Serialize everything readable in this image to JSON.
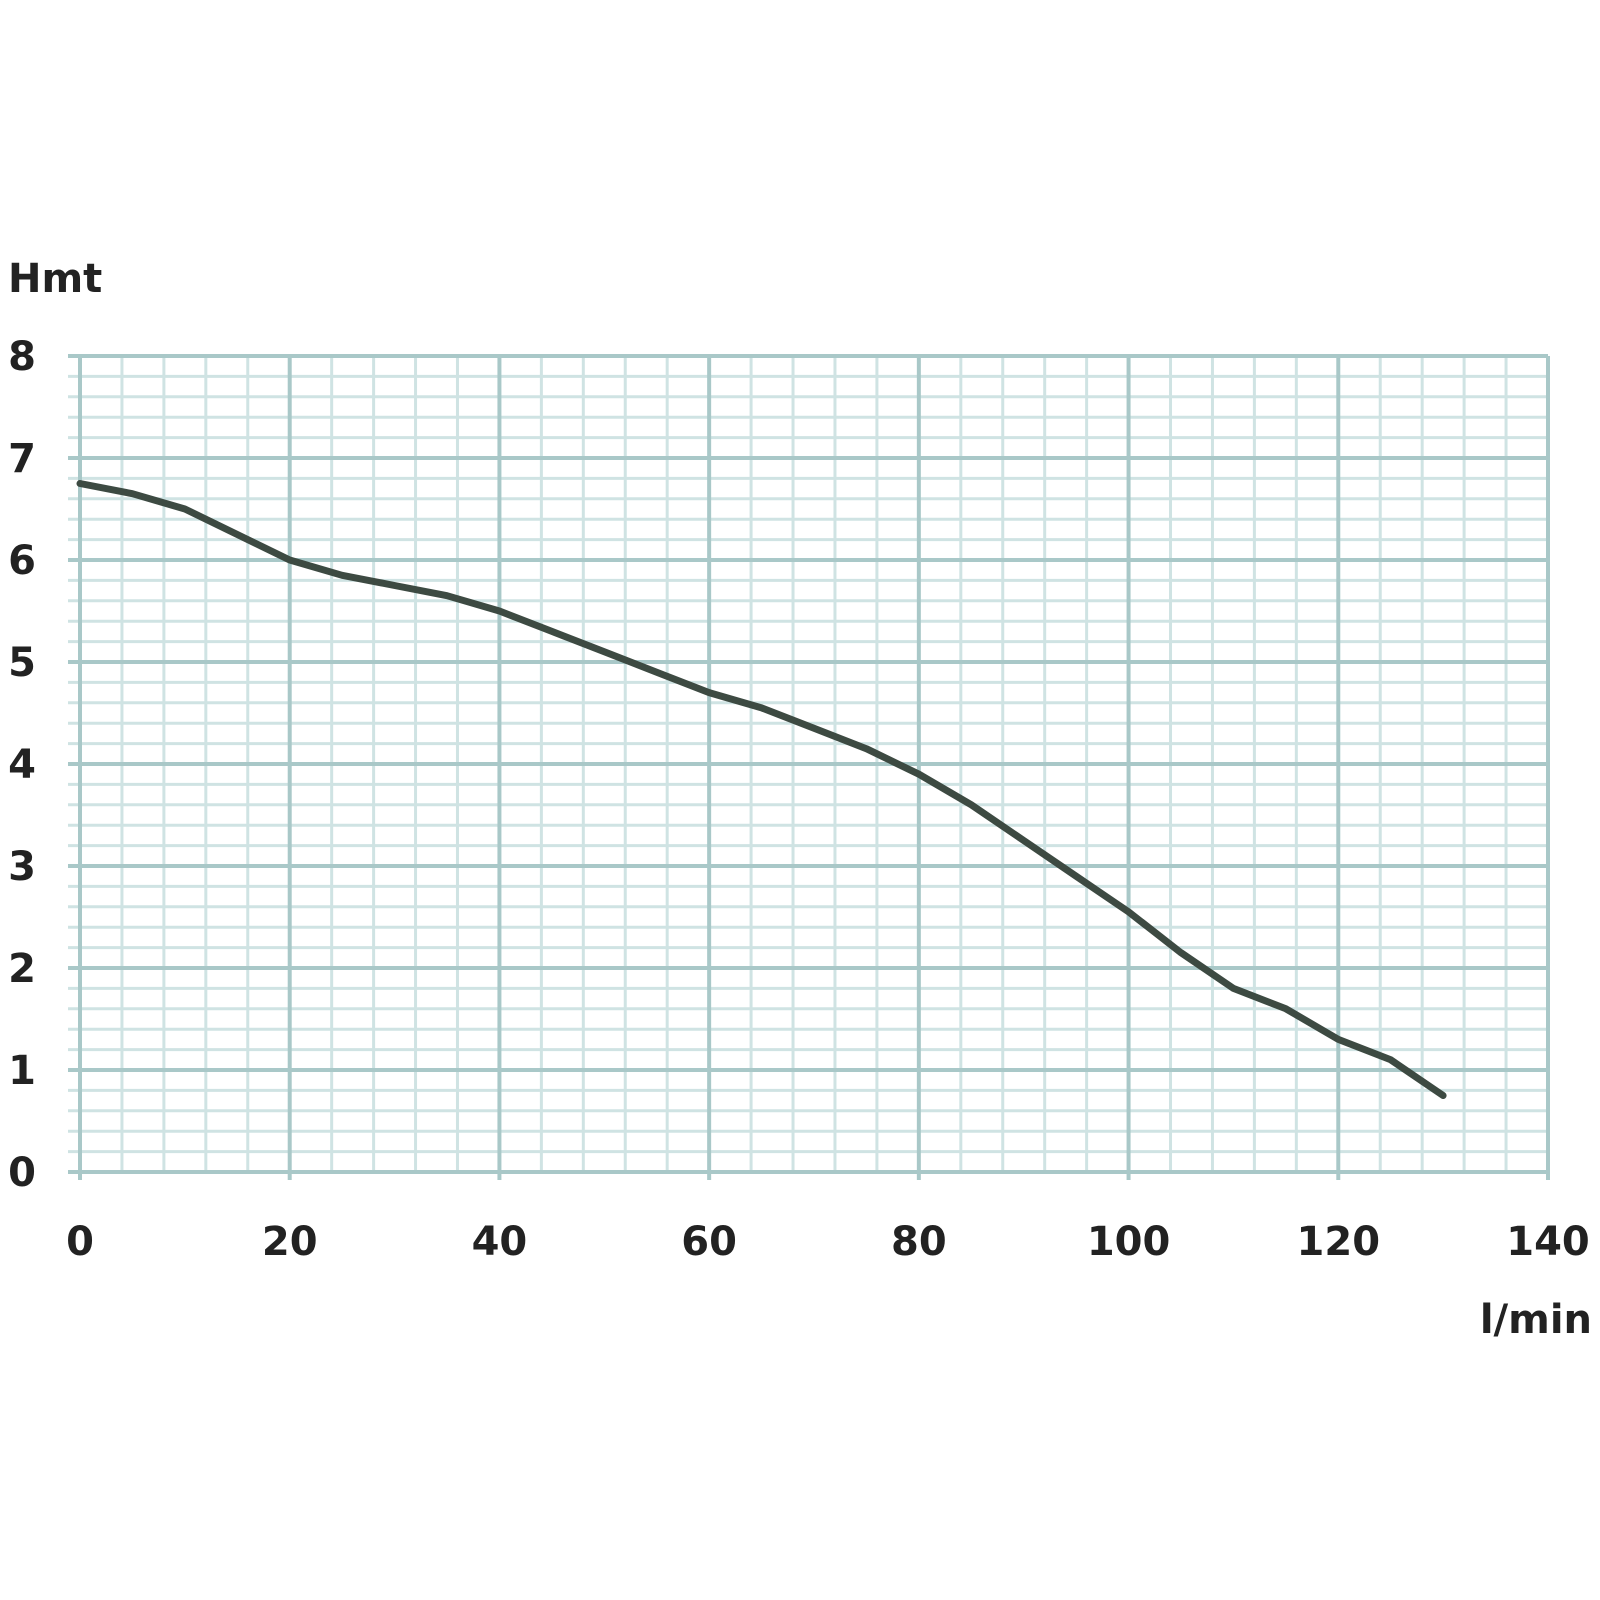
{
  "chart_data": {
    "type": "line",
    "title": "",
    "xlabel": "l/min",
    "ylabel": "Hmt",
    "xlim": [
      0,
      140
    ],
    "ylim": [
      0,
      8
    ],
    "xticks": [
      0,
      20,
      40,
      60,
      80,
      100,
      120,
      140
    ],
    "yticks": [
      0,
      1,
      2,
      3,
      4,
      5,
      6,
      7,
      8
    ],
    "grid": true,
    "minor_grid": {
      "x_step": 4,
      "y_step": 0.2
    },
    "series": [
      {
        "color": "#3d4a42",
        "x": [
          0,
          5,
          10,
          15,
          20,
          25,
          30,
          35,
          40,
          45,
          50,
          55,
          60,
          65,
          70,
          75,
          80,
          85,
          90,
          95,
          100,
          105,
          110,
          115,
          120,
          125,
          130
        ],
        "y": [
          6.75,
          6.65,
          6.5,
          6.25,
          6.0,
          5.85,
          5.75,
          5.65,
          5.5,
          5.3,
          5.1,
          4.9,
          4.7,
          4.55,
          4.35,
          4.15,
          3.9,
          3.6,
          3.25,
          2.9,
          2.55,
          2.15,
          1.8,
          1.6,
          1.3,
          1.1,
          0.75
        ]
      }
    ],
    "colors": {
      "grid_major": "#a9c8c8",
      "grid_minor": "#cfe3e3",
      "text": "#222222"
    }
  }
}
